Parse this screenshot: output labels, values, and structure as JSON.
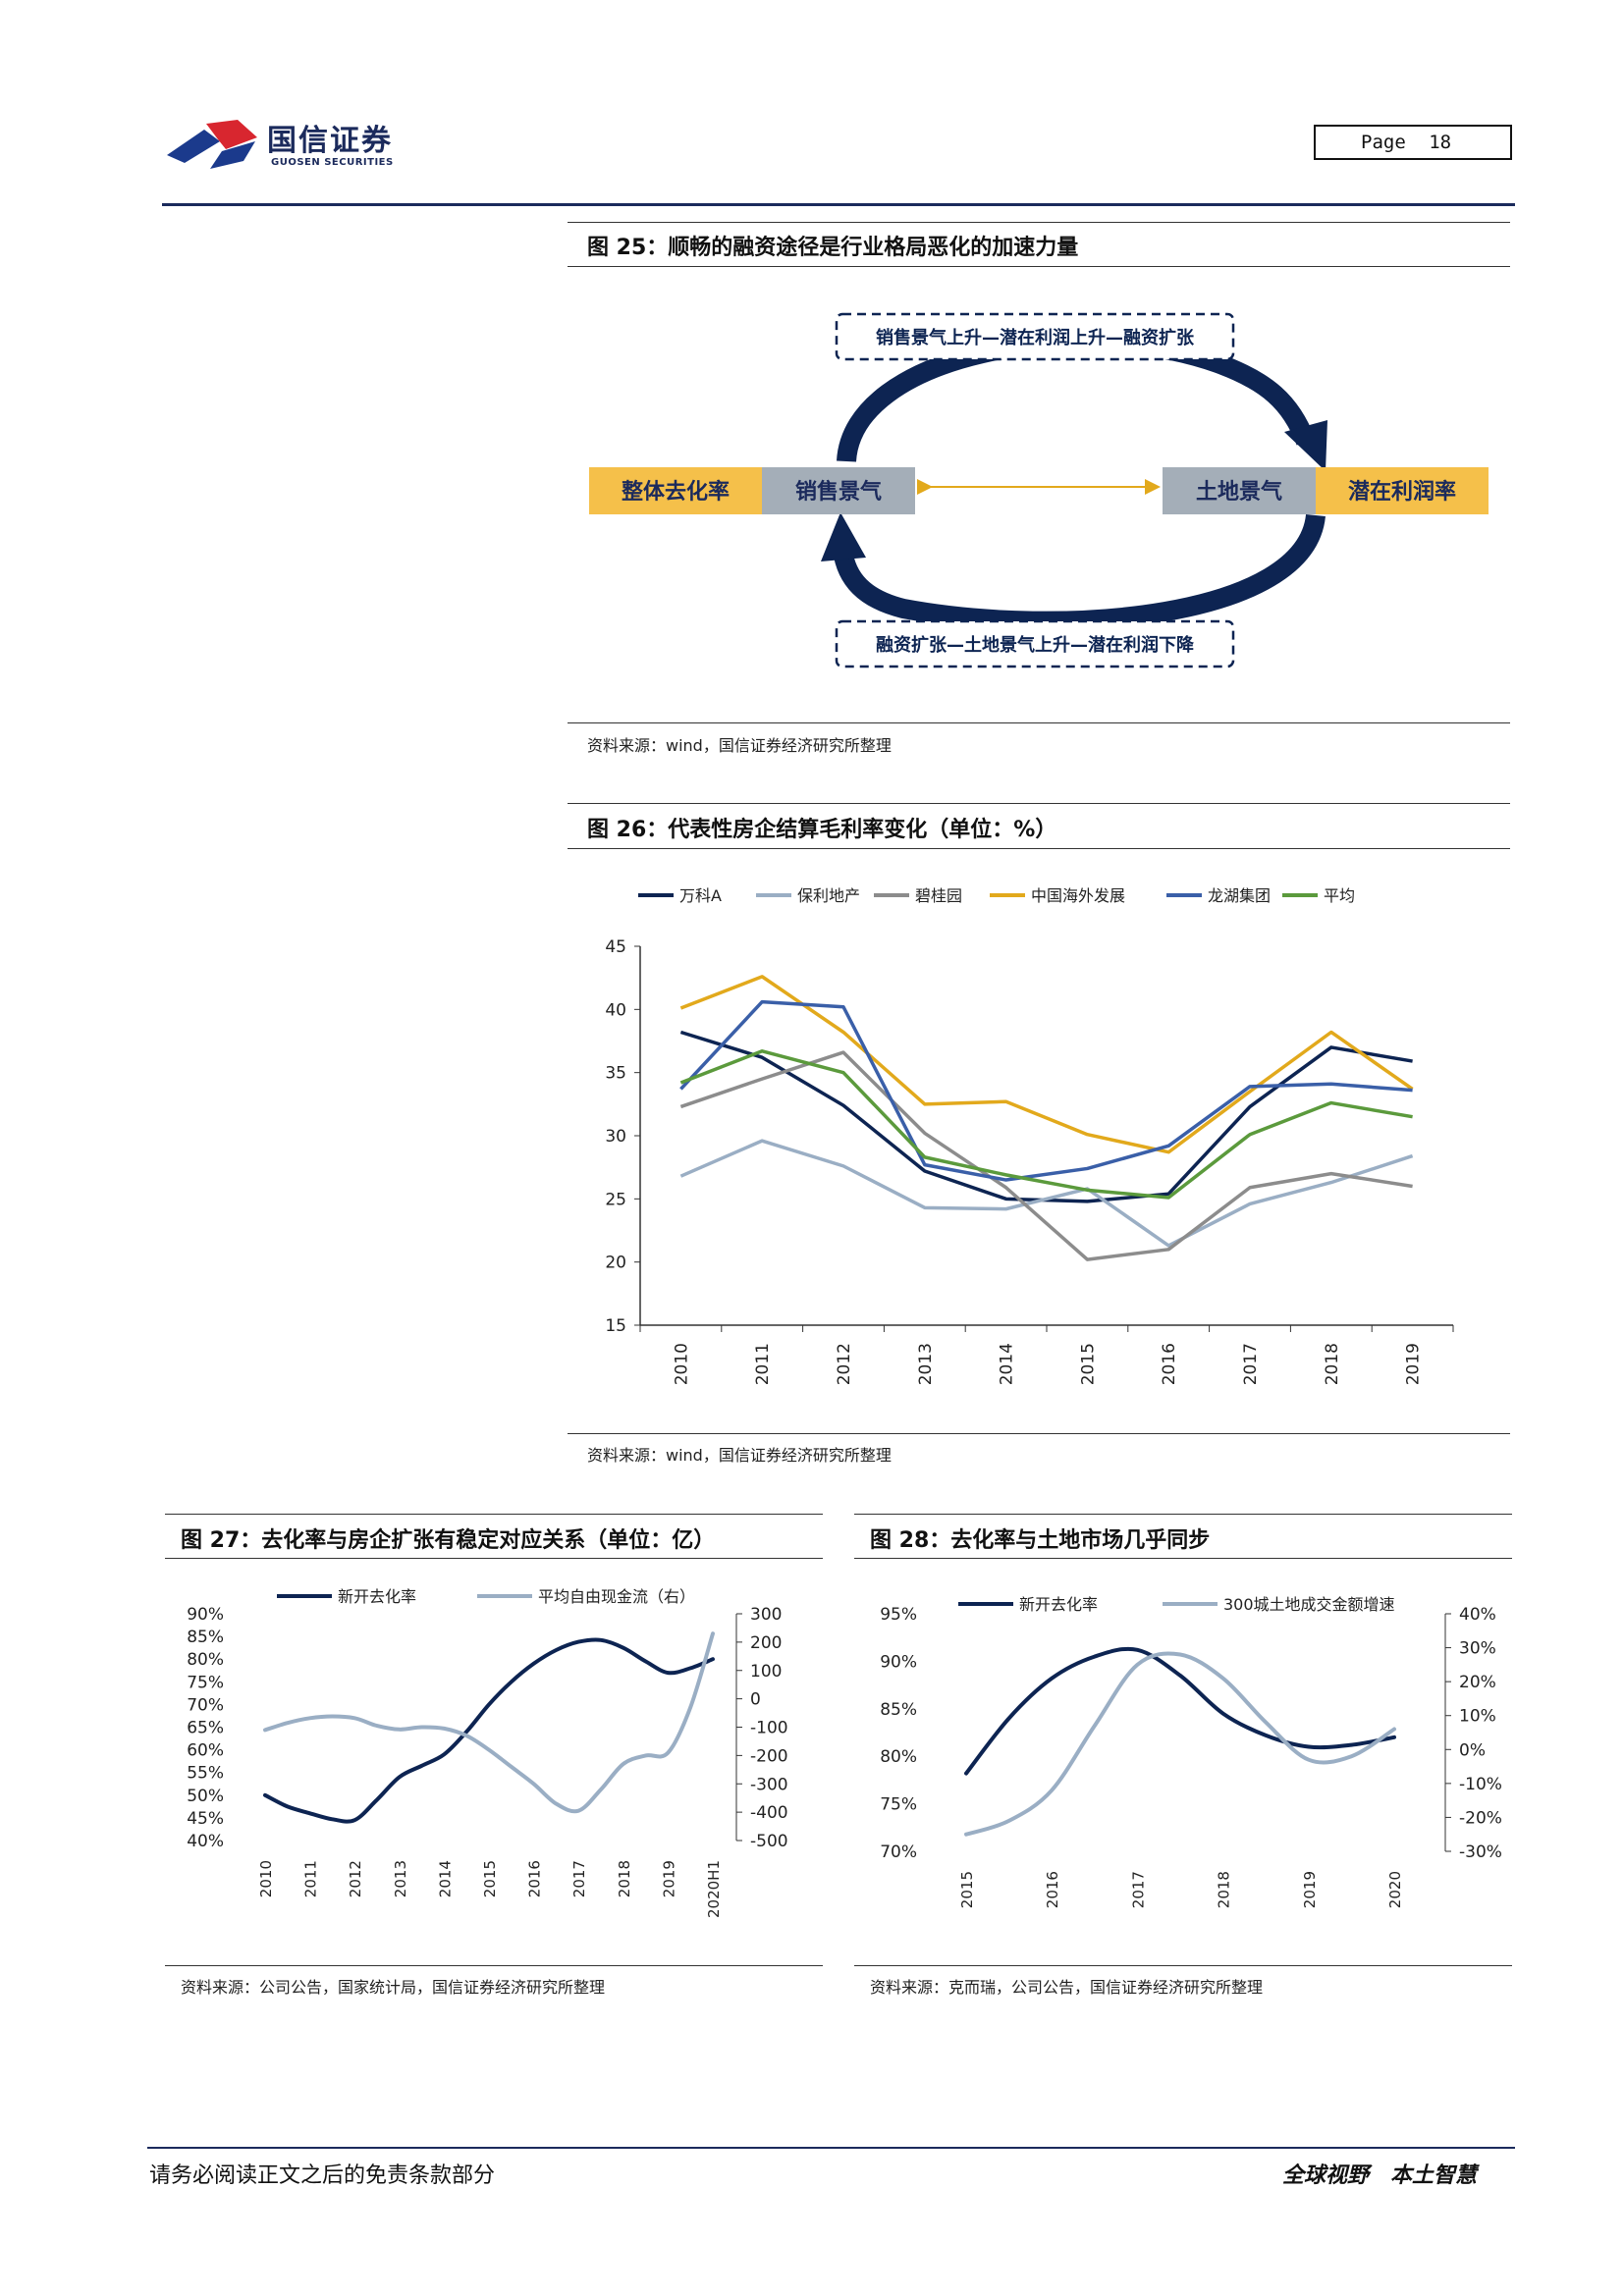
{
  "header": {
    "logo_cn": "国信证券",
    "logo_en": "GUOSEN SECURITIES",
    "page_label": "Page",
    "page_number": "18"
  },
  "fig25": {
    "title": "图 25：顺畅的融资途径是行业格局恶化的加速力量",
    "top_box": "销售景气上升—潜在利润上升—融资扩张",
    "bottom_box": "融资扩张—土地景气上升—潜在利润下降",
    "left_outer": "整体去化率",
    "left_inner": "销售景气",
    "right_inner": "土地景气",
    "right_outer": "潜在利润率",
    "source": "资料来源：wind，国信证券经济研究所整理"
  },
  "fig26": {
    "title": "图 26：代表性房企结算毛利率变化（单位：%）",
    "source": "资料来源：wind，国信证券经济研究所整理"
  },
  "fig27": {
    "title": "图 27：去化率与房企扩张有稳定对应关系（单位：亿）",
    "source": "资料来源：公司公告，国家统计局，国信证券经济研究所整理"
  },
  "fig28": {
    "title": "图 28：去化率与土地市场几乎同步",
    "source": "资料来源：克而瑞，公司公告，国信证券经济研究所整理"
  },
  "footer": {
    "disclaimer": "请务必阅读正文之后的免责条款部分",
    "slogan": "全球视野　本土智慧"
  },
  "colors": {
    "navy": "#0d2452",
    "lightblue": "#9aaec4",
    "gray": "#8c8c8c",
    "gold": "#e2a91c",
    "blue": "#3a5fa8",
    "green": "#5b9a3c",
    "orange_box": "#f5c04a",
    "gray_box": "#a4aeb8"
  },
  "chart_data": [
    {
      "type": "line",
      "id": "fig26",
      "x": [
        "2010",
        "2011",
        "2012",
        "2013",
        "2014",
        "2015",
        "2016",
        "2017",
        "2018",
        "2019"
      ],
      "ylim": [
        15,
        45
      ],
      "yticks": [
        "45",
        "40",
        "35",
        "30",
        "25",
        "20",
        "15"
      ],
      "legend_position": "top",
      "series": [
        {
          "name": "万科A",
          "color": "#0d2452",
          "values": [
            38.2,
            36.2,
            32.4,
            27.2,
            25.0,
            24.8,
            25.4,
            32.3,
            37.0,
            35.9
          ]
        },
        {
          "name": "保利地产",
          "color": "#9aaec4",
          "values": [
            26.8,
            29.6,
            27.6,
            24.3,
            24.2,
            25.8,
            21.3,
            24.6,
            26.3,
            28.4
          ]
        },
        {
          "name": "碧桂园",
          "color": "#8c8c8c",
          "values": [
            32.3,
            34.5,
            36.6,
            30.2,
            25.9,
            20.2,
            21.0,
            25.9,
            27.0,
            26.0
          ]
        },
        {
          "name": "中国海外发展",
          "color": "#e2a91c",
          "values": [
            40.1,
            42.6,
            38.2,
            32.5,
            32.7,
            30.1,
            28.7,
            33.5,
            38.2,
            33.7
          ]
        },
        {
          "name": "龙湖集团",
          "color": "#3a5fa8",
          "values": [
            33.7,
            40.6,
            40.2,
            27.7,
            26.5,
            27.4,
            29.2,
            33.9,
            34.1,
            33.6
          ]
        },
        {
          "name": "平均",
          "color": "#5b9a3c",
          "values": [
            34.2,
            36.7,
            35.0,
            28.3,
            26.9,
            25.7,
            25.1,
            30.1,
            32.6,
            31.5
          ]
        }
      ]
    },
    {
      "type": "line",
      "id": "fig27",
      "x": [
        "2010",
        "2011",
        "2012",
        "2013",
        "2014",
        "2015",
        "2016",
        "2017",
        "2018",
        "2019",
        "2020H1"
      ],
      "ylim_left": [
        0.4,
        0.9
      ],
      "ylim_right": [
        -500,
        300
      ],
      "yticks_left": [
        "90%",
        "85%",
        "80%",
        "75%",
        "70%",
        "65%",
        "60%",
        "55%",
        "50%",
        "45%",
        "40%"
      ],
      "yticks_right": [
        "300",
        "200",
        "100",
        "0",
        "-100",
        "-200",
        "-300",
        "-400",
        "-500"
      ],
      "legend_position": "top",
      "series": [
        {
          "name": "新开去化率",
          "axis": "left",
          "color": "#0d2452",
          "points": [
            [
              0,
              0.5
            ],
            [
              0.5,
              0.475
            ],
            [
              1,
              0.46
            ],
            [
              1.5,
              0.447
            ],
            [
              2,
              0.445
            ],
            [
              2.5,
              0.49
            ],
            [
              3,
              0.54
            ],
            [
              3.5,
              0.565
            ],
            [
              4,
              0.59
            ],
            [
              4.5,
              0.64
            ],
            [
              5,
              0.7
            ],
            [
              5.5,
              0.75
            ],
            [
              6,
              0.79
            ],
            [
              6.5,
              0.82
            ],
            [
              7,
              0.838
            ],
            [
              7.5,
              0.842
            ],
            [
              8,
              0.825
            ],
            [
              8.5,
              0.795
            ],
            [
              9,
              0.77
            ],
            [
              9.5,
              0.78
            ],
            [
              10,
              0.8
            ]
          ]
        },
        {
          "name": "平均自由现金流（右）",
          "axis": "right",
          "color": "#9aaec4",
          "points": [
            [
              0,
              -110
            ],
            [
              0.5,
              -85
            ],
            [
              1,
              -68
            ],
            [
              1.5,
              -62
            ],
            [
              2,
              -68
            ],
            [
              2.5,
              -95
            ],
            [
              3,
              -108
            ],
            [
              3.5,
              -100
            ],
            [
              4,
              -105
            ],
            [
              4.5,
              -130
            ],
            [
              5,
              -180
            ],
            [
              5.5,
              -240
            ],
            [
              6,
              -300
            ],
            [
              6.5,
              -370
            ],
            [
              7,
              -395
            ],
            [
              7.5,
              -320
            ],
            [
              8,
              -230
            ],
            [
              8.5,
              -200
            ],
            [
              9,
              -190
            ],
            [
              9.5,
              -30
            ],
            [
              10,
              230
            ]
          ]
        }
      ]
    },
    {
      "type": "line",
      "id": "fig28",
      "x": [
        "2015",
        "2016",
        "2017",
        "2018",
        "2019",
        "2020"
      ],
      "ylim_left": [
        0.7,
        0.95
      ],
      "ylim_right": [
        -0.3,
        0.4
      ],
      "yticks_left": [
        "95%",
        "90%",
        "85%",
        "80%",
        "75%",
        "70%"
      ],
      "yticks_right": [
        "40%",
        "30%",
        "20%",
        "10%",
        "0%",
        "-10%",
        "-20%",
        "-30%"
      ],
      "legend_position": "top",
      "series": [
        {
          "name": "新开去化率",
          "axis": "left",
          "color": "#0d2452",
          "points": [
            [
              0,
              0.782
            ],
            [
              0.5,
              0.84
            ],
            [
              1,
              0.882
            ],
            [
              1.5,
              0.905
            ],
            [
              2,
              0.912
            ],
            [
              2.5,
              0.885
            ],
            [
              3,
              0.845
            ],
            [
              3.5,
              0.822
            ],
            [
              4,
              0.81
            ],
            [
              4.5,
              0.812
            ],
            [
              5,
              0.82
            ]
          ]
        },
        {
          "name": "300城土地成交金额增速",
          "axis": "right",
          "color": "#9aaec4",
          "points": [
            [
              0,
              -0.25
            ],
            [
              0.5,
              -0.21
            ],
            [
              1,
              -0.12
            ],
            [
              1.5,
              0.07
            ],
            [
              2,
              0.25
            ],
            [
              2.5,
              0.28
            ],
            [
              3,
              0.21
            ],
            [
              3.5,
              0.08
            ],
            [
              4,
              -0.03
            ],
            [
              4.5,
              -0.02
            ],
            [
              5,
              0.06
            ]
          ]
        }
      ]
    }
  ]
}
